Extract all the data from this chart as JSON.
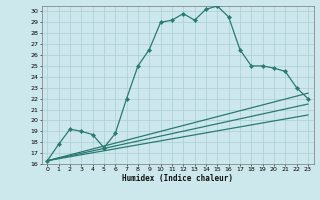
{
  "xlabel": "Humidex (Indice chaleur)",
  "bg_color": "#cce8ec",
  "grid_color": "#aacdd4",
  "line_color": "#2a7a72",
  "xlim": [
    -0.5,
    23.5
  ],
  "ylim": [
    16,
    30.5
  ],
  "xticks": [
    0,
    1,
    2,
    3,
    4,
    5,
    6,
    7,
    8,
    9,
    10,
    11,
    12,
    13,
    14,
    15,
    16,
    17,
    18,
    19,
    20,
    21,
    22,
    23
  ],
  "yticks": [
    16,
    17,
    18,
    19,
    20,
    21,
    22,
    23,
    24,
    25,
    26,
    27,
    28,
    29,
    30
  ],
  "line1_x": [
    0,
    1,
    2,
    3,
    4,
    5,
    5,
    6,
    7,
    8,
    9,
    10,
    11,
    12,
    13,
    14,
    15,
    16,
    17,
    18,
    19,
    20,
    21,
    22,
    23
  ],
  "line1_y": [
    16.3,
    17.8,
    19.2,
    19.0,
    18.7,
    17.5,
    17.5,
    18.8,
    22.0,
    25.0,
    26.5,
    29.0,
    29.2,
    29.8,
    29.2,
    30.2,
    30.5,
    29.5,
    26.5,
    25.0,
    25.0,
    24.8,
    24.5,
    23.0,
    22.0
  ],
  "line2_x": [
    0,
    23
  ],
  "line2_y": [
    16.3,
    21.5
  ],
  "line3_x": [
    0,
    23
  ],
  "line3_y": [
    16.3,
    22.5
  ],
  "line4_x": [
    0,
    23
  ],
  "line4_y": [
    16.3,
    20.5
  ]
}
